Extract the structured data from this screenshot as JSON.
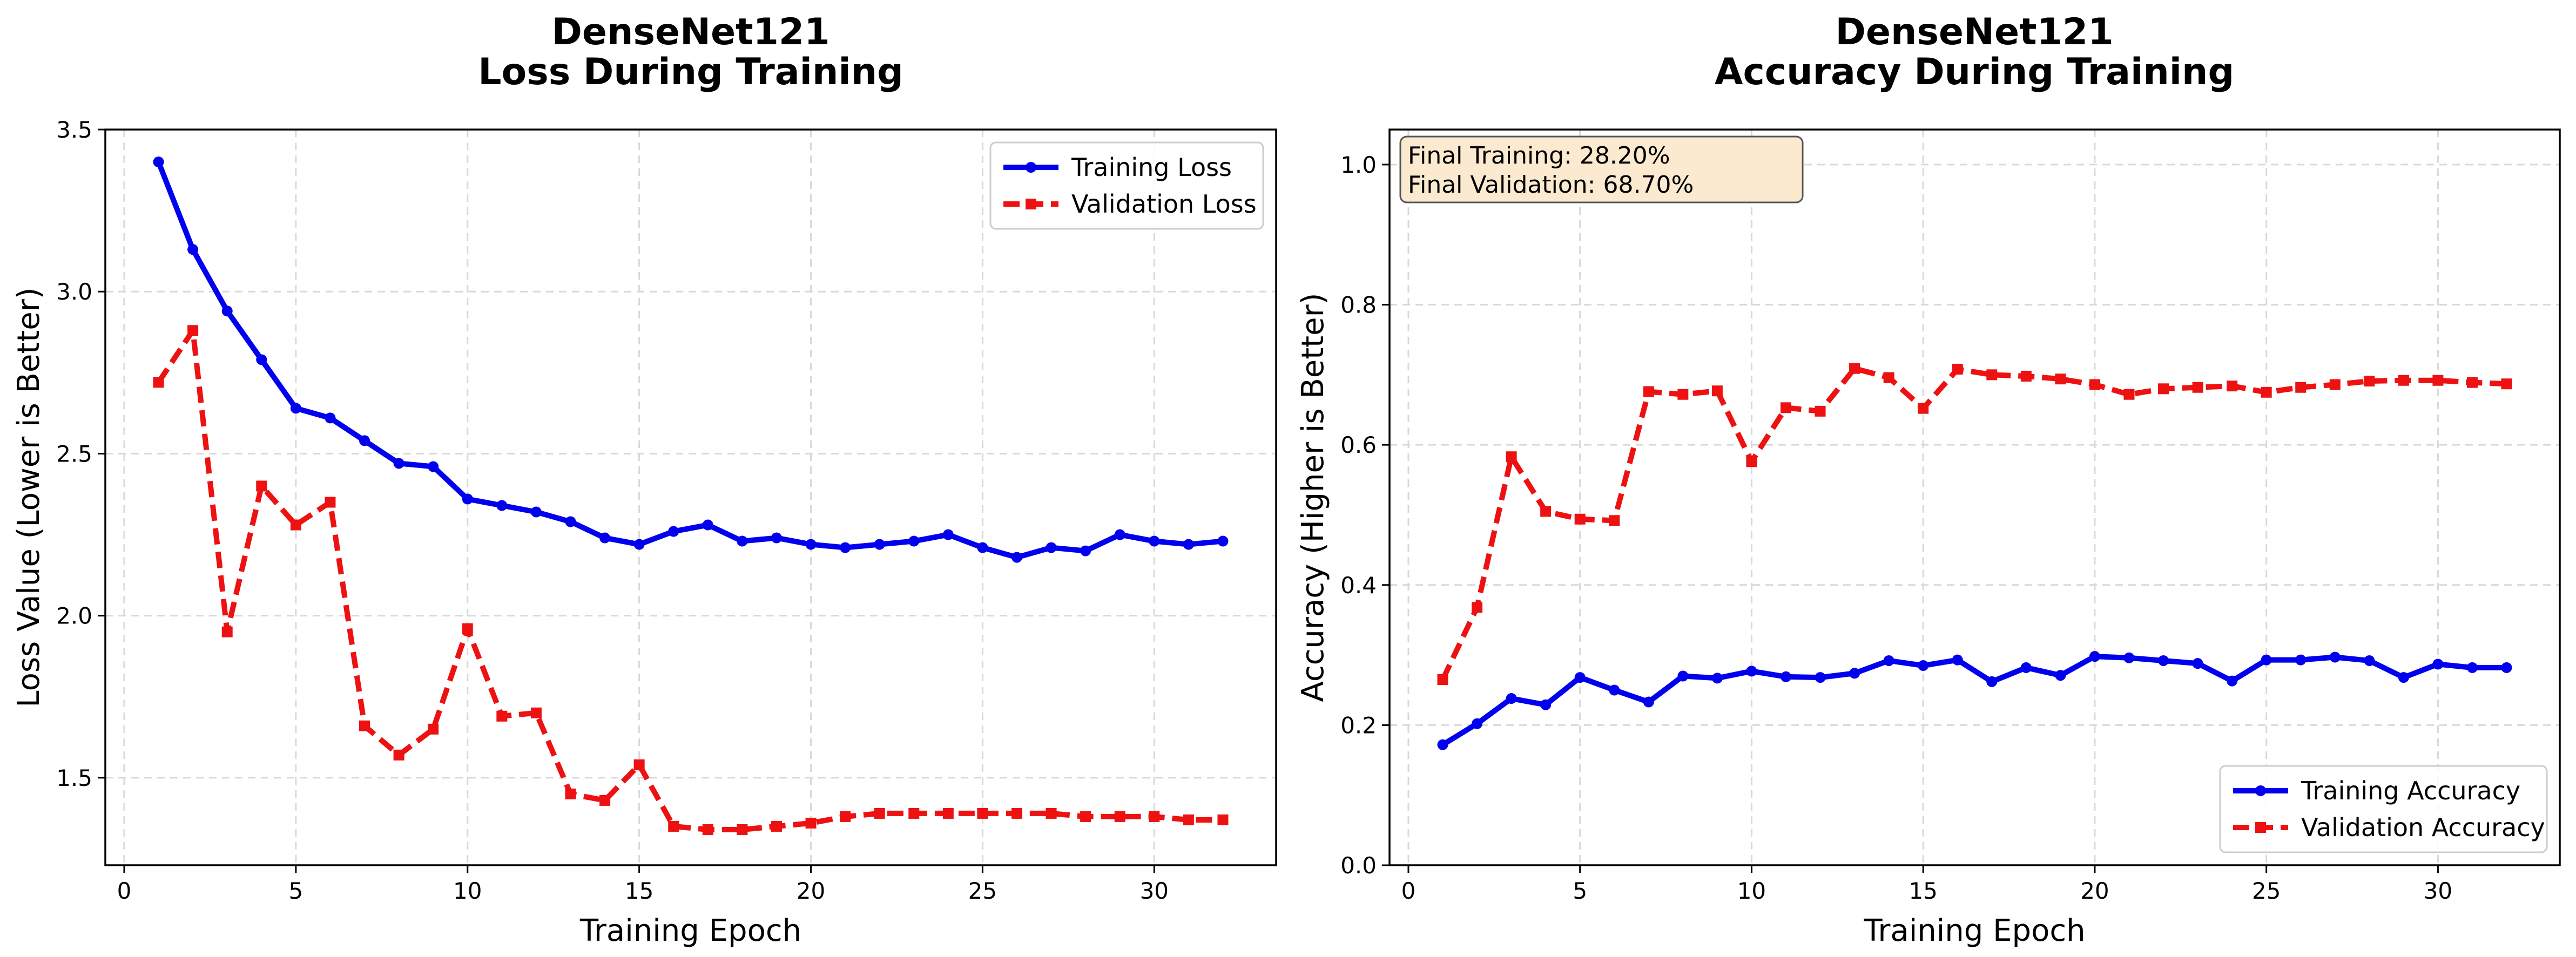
{
  "chart_data": [
    {
      "type": "line",
      "title": "DenseNet121\nLoss During Training",
      "xlabel": "Training Epoch",
      "ylabel": "Loss Value (Lower is Better)",
      "xlim": [
        -0.55,
        33.55
      ],
      "ylim": [
        1.23,
        3.5
      ],
      "xticks": [
        0,
        5,
        10,
        15,
        20,
        25,
        30
      ],
      "yticks": [
        1.5,
        2.0,
        2.5,
        3.0,
        3.5
      ],
      "ytick_labels": [
        "1.5",
        "2.0",
        "2.5",
        "3.0",
        "3.5"
      ],
      "grid": true,
      "legend": "top-right",
      "x": [
        1,
        2,
        3,
        4,
        5,
        6,
        7,
        8,
        9,
        10,
        11,
        12,
        13,
        14,
        15,
        16,
        17,
        18,
        19,
        20,
        21,
        22,
        23,
        24,
        25,
        26,
        27,
        28,
        29,
        30,
        31,
        32
      ],
      "series": [
        {
          "name": "Training Loss",
          "color": "#0000ee",
          "style": "solid",
          "marker": "circle",
          "values": [
            3.4,
            3.13,
            2.94,
            2.79,
            2.64,
            2.61,
            2.54,
            2.47,
            2.46,
            2.36,
            2.34,
            2.32,
            2.29,
            2.24,
            2.22,
            2.26,
            2.28,
            2.23,
            2.24,
            2.22,
            2.21,
            2.22,
            2.23,
            2.25,
            2.21,
            2.18,
            2.21,
            2.2,
            2.25,
            2.23,
            2.22,
            2.23
          ]
        },
        {
          "name": "Validation Loss",
          "color": "#ee1111",
          "style": "dashed",
          "marker": "square",
          "values": [
            2.72,
            2.88,
            1.95,
            2.4,
            2.28,
            2.35,
            1.66,
            1.57,
            1.65,
            1.96,
            1.69,
            1.7,
            1.45,
            1.43,
            1.54,
            1.35,
            1.34,
            1.34,
            1.35,
            1.36,
            1.38,
            1.39,
            1.39,
            1.39,
            1.39,
            1.39,
            1.39,
            1.38,
            1.38,
            1.38,
            1.37,
            1.37
          ]
        }
      ]
    },
    {
      "type": "line",
      "title": "DenseNet121\nAccuracy During Training",
      "xlabel": "Training Epoch",
      "ylabel": "Accuracy (Higher is Better)",
      "xlim": [
        -0.55,
        33.55
      ],
      "ylim": [
        0.0,
        1.05
      ],
      "xticks": [
        0,
        5,
        10,
        15,
        20,
        25,
        30
      ],
      "yticks": [
        0.0,
        0.2,
        0.4,
        0.6,
        0.8,
        1.0
      ],
      "ytick_labels": [
        "0.0",
        "0.2",
        "0.4",
        "0.6",
        "0.8",
        "1.0"
      ],
      "grid": true,
      "legend": "bottom-right",
      "annotation": [
        "Final Training: 28.20%",
        "Final Validation: 68.70%"
      ],
      "annotation_color": "#fbead0",
      "x": [
        1,
        2,
        3,
        4,
        5,
        6,
        7,
        8,
        9,
        10,
        11,
        12,
        13,
        14,
        15,
        16,
        17,
        18,
        19,
        20,
        21,
        22,
        23,
        24,
        25,
        26,
        27,
        28,
        29,
        30,
        31,
        32
      ],
      "series": [
        {
          "name": "Training Accuracy",
          "color": "#0000ee",
          "style": "solid",
          "marker": "circle",
          "values": [
            0.172,
            0.202,
            0.238,
            0.229,
            0.268,
            0.25,
            0.233,
            0.27,
            0.267,
            0.277,
            0.269,
            0.268,
            0.274,
            0.292,
            0.285,
            0.293,
            0.262,
            0.282,
            0.271,
            0.298,
            0.296,
            0.292,
            0.288,
            0.263,
            0.293,
            0.293,
            0.297,
            0.292,
            0.268,
            0.287,
            0.282,
            0.282
          ]
        },
        {
          "name": "Validation Accuracy",
          "color": "#ee1111",
          "style": "dashed",
          "marker": "square",
          "values": [
            0.265,
            0.368,
            0.583,
            0.505,
            0.494,
            0.492,
            0.676,
            0.672,
            0.677,
            0.576,
            0.653,
            0.648,
            0.709,
            0.696,
            0.652,
            0.708,
            0.7,
            0.698,
            0.694,
            0.686,
            0.672,
            0.68,
            0.682,
            0.684,
            0.675,
            0.682,
            0.686,
            0.691,
            0.692,
            0.692,
            0.689,
            0.687
          ]
        }
      ]
    }
  ]
}
